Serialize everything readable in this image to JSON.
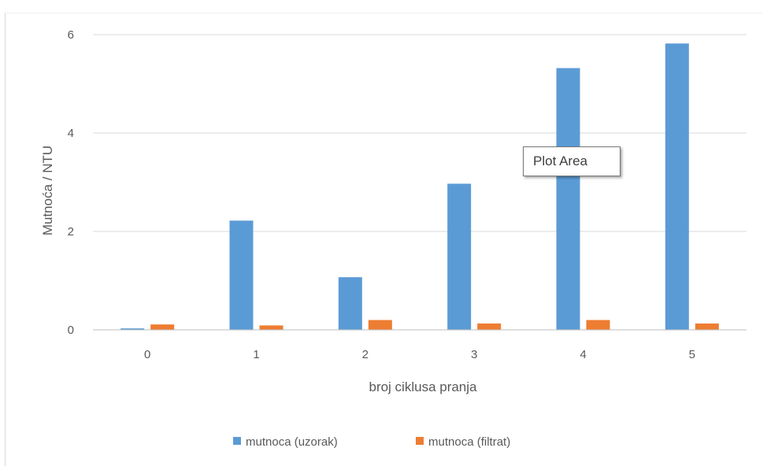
{
  "chart_data": {
    "type": "bar",
    "categories": [
      "0",
      "1",
      "2",
      "3",
      "4",
      "5"
    ],
    "series": [
      {
        "name": "mutnoca (uzorak)",
        "color": "#5b9bd5",
        "values": [
          0.03,
          2.22,
          1.07,
          2.97,
          5.32,
          5.82
        ]
      },
      {
        "name": "mutnoca (filtrat)",
        "color": "#ed7d31",
        "values": [
          0.11,
          0.09,
          0.2,
          0.13,
          0.2,
          0.13
        ]
      }
    ],
    "xlabel": "broj ciklusa pranja",
    "ylabel": "Mutnoća / NTU",
    "ylim": [
      0,
      6
    ],
    "yticks": [
      "0",
      "2",
      "4",
      "6"
    ],
    "grid": true,
    "legend_position": "bottom"
  },
  "tooltip": {
    "label": "Plot Area"
  }
}
